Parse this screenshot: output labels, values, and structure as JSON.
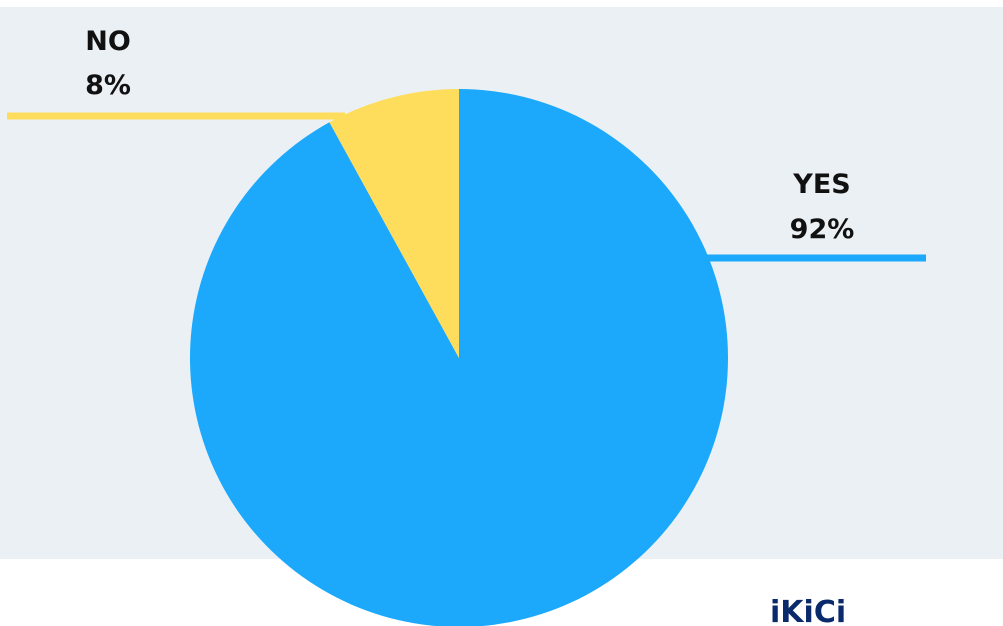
{
  "chart_data": {
    "type": "pie",
    "title": "",
    "slices": [
      {
        "label": "YES",
        "value": 92,
        "value_label": "92%",
        "color": "#1CA9FC"
      },
      {
        "label": "NO",
        "value": 8,
        "value_label": "8%",
        "color": "#FFDD5C"
      }
    ],
    "background_color": "#EBF0F5",
    "label_color": "#111111"
  },
  "watermark": {
    "text": "iKiCi",
    "color": "#0B2A6B"
  }
}
